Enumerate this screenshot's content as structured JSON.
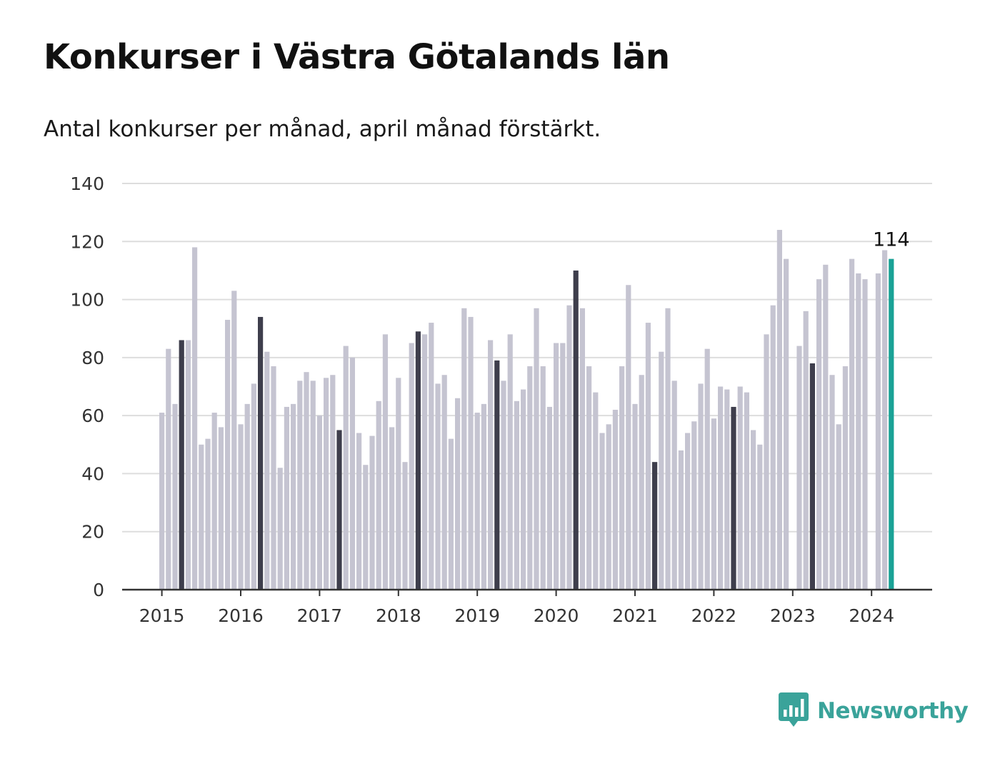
{
  "title": "Konkurser i Västra Götalands län",
  "subtitle": "Antal konkurser per månad, april månad förstärkt.",
  "brand": "Newsworthy",
  "colors": {
    "bar": "#c5c4d1",
    "highlight": "#3e3e4c",
    "latest": "#1aa296",
    "grid": "#dddddd",
    "axis": "#333333",
    "brand": "#3aa39a"
  },
  "chart_data": {
    "type": "bar",
    "x_start": "2015-01",
    "highlight_month": "April",
    "ylim": [
      0,
      140
    ],
    "yticks": [
      0,
      20,
      40,
      60,
      80,
      100,
      120,
      140
    ],
    "xticks": [
      "2015",
      "2016",
      "2017",
      "2018",
      "2019",
      "2020",
      "2021",
      "2022",
      "2023",
      "2024"
    ],
    "grid": true,
    "data_label": "114",
    "values": [
      61,
      83,
      64,
      86,
      86,
      118,
      50,
      52,
      61,
      56,
      93,
      103,
      57,
      64,
      71,
      94,
      82,
      77,
      42,
      63,
      64,
      72,
      75,
      72,
      60,
      73,
      74,
      55,
      84,
      80,
      54,
      43,
      53,
      65,
      88,
      56,
      73,
      44,
      85,
      89,
      88,
      92,
      71,
      74,
      52,
      66,
      97,
      94,
      61,
      64,
      86,
      79,
      72,
      88,
      65,
      69,
      77,
      97,
      77,
      63,
      85,
      85,
      98,
      110,
      97,
      77,
      68,
      54,
      57,
      62,
      77,
      105,
      64,
      74,
      92,
      44,
      82,
      97,
      72,
      48,
      54,
      58,
      71,
      83,
      59,
      70,
      69,
      63,
      70,
      68,
      55,
      50,
      88,
      98,
      124,
      114,
      null,
      84,
      96,
      78,
      107,
      112,
      74,
      57,
      77,
      114,
      109,
      107,
      null,
      109,
      117,
      114
    ]
  }
}
